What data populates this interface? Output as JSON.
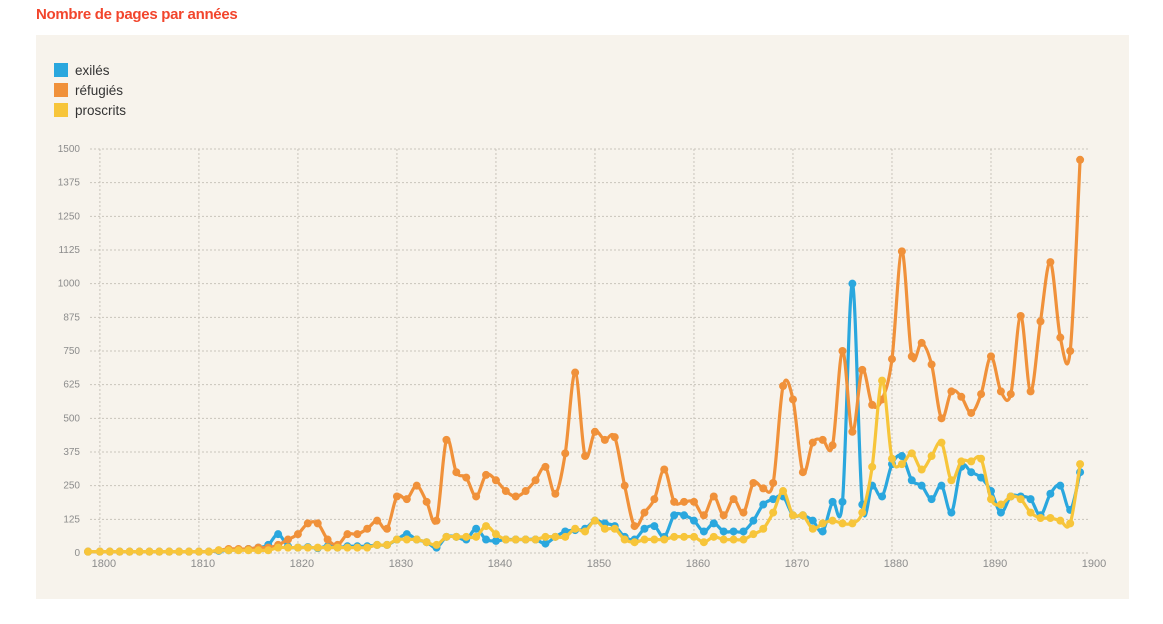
{
  "chart_title": "Nombre de pages par années",
  "chart_data": {
    "type": "line",
    "title": "Nombre de pages par années",
    "xlabel": "",
    "ylabel": "",
    "xlim": [
      1799,
      1900
    ],
    "ylim": [
      0,
      1500
    ],
    "x_ticks": [
      1800,
      1810,
      1820,
      1830,
      1840,
      1850,
      1860,
      1870,
      1880,
      1890,
      1900
    ],
    "y_ticks": [
      0,
      125,
      250,
      375,
      500,
      625,
      750,
      875,
      1000,
      1125,
      1250,
      1375,
      1500
    ],
    "grid": true,
    "legend_position": "top-left",
    "x": [
      1798.8,
      1800,
      1801,
      1802,
      1803,
      1804,
      1805,
      1806,
      1807,
      1808,
      1809,
      1810,
      1811,
      1812,
      1813,
      1814,
      1815,
      1816,
      1817,
      1818,
      1819,
      1820,
      1821,
      1822,
      1823,
      1824,
      1825,
      1826,
      1827,
      1828,
      1829,
      1830,
      1831,
      1832,
      1833,
      1834,
      1835,
      1836,
      1837,
      1838,
      1839,
      1840,
      1841,
      1842,
      1843,
      1844,
      1845,
      1846,
      1847,
      1848,
      1849,
      1850,
      1851,
      1852,
      1853,
      1854,
      1855,
      1856,
      1857,
      1858,
      1859,
      1860,
      1861,
      1862,
      1863,
      1864,
      1865,
      1866,
      1867,
      1868,
      1869,
      1870,
      1871,
      1872,
      1873,
      1874,
      1875,
      1876,
      1877,
      1878,
      1879,
      1880,
      1881,
      1882,
      1883,
      1884,
      1885,
      1886,
      1887,
      1888,
      1889,
      1890,
      1891,
      1892,
      1893,
      1894,
      1895,
      1896,
      1897,
      1898,
      1899
    ],
    "series": [
      {
        "name": "exilés",
        "color": "#2aa7de",
        "values": [
          5,
          5,
          5,
          5,
          5,
          5,
          5,
          5,
          5,
          5,
          5,
          5,
          5,
          8,
          10,
          12,
          15,
          20,
          30,
          70,
          25,
          20,
          22,
          18,
          25,
          20,
          25,
          25,
          25,
          30,
          30,
          50,
          70,
          50,
          40,
          20,
          60,
          60,
          50,
          90,
          50,
          45,
          50,
          50,
          50,
          50,
          35,
          60,
          80,
          85,
          90,
          120,
          110,
          100,
          60,
          50,
          90,
          100,
          60,
          140,
          140,
          120,
          80,
          110,
          80,
          80,
          80,
          120,
          180,
          200,
          210,
          140,
          140,
          120,
          80,
          190,
          190,
          1000,
          180,
          250,
          210,
          330,
          360,
          270,
          250,
          200,
          250,
          150,
          320,
          300,
          280,
          230,
          150,
          210,
          210,
          200,
          140,
          220,
          250,
          160,
          300
        ]
      },
      {
        "name": "réfugiés",
        "color": "#f0913a",
        "values": [
          5,
          5,
          5,
          5,
          5,
          5,
          5,
          5,
          5,
          5,
          5,
          5,
          5,
          10,
          15,
          15,
          15,
          20,
          20,
          30,
          50,
          70,
          110,
          110,
          50,
          30,
          70,
          70,
          90,
          120,
          90,
          210,
          200,
          250,
          190,
          120,
          420,
          300,
          280,
          210,
          290,
          270,
          230,
          210,
          230,
          270,
          320,
          220,
          370,
          670,
          360,
          450,
          420,
          430,
          250,
          100,
          150,
          200,
          310,
          190,
          190,
          190,
          140,
          210,
          140,
          200,
          150,
          260,
          240,
          260,
          620,
          570,
          300,
          410,
          420,
          400,
          750,
          450,
          680,
          550,
          570,
          720,
          1120,
          730,
          780,
          700,
          500,
          600,
          580,
          520,
          590,
          730,
          600,
          590,
          880,
          600,
          860,
          1080,
          800,
          750,
          1460
        ]
      },
      {
        "name": "proscrits",
        "color": "#f7c53a",
        "values": [
          5,
          5,
          5,
          5,
          5,
          5,
          5,
          5,
          5,
          5,
          5,
          5,
          5,
          10,
          10,
          10,
          10,
          10,
          10,
          20,
          20,
          20,
          20,
          20,
          20,
          20,
          20,
          20,
          20,
          30,
          30,
          50,
          50,
          50,
          40,
          30,
          60,
          60,
          60,
          60,
          100,
          70,
          50,
          50,
          50,
          50,
          60,
          60,
          60,
          90,
          80,
          120,
          90,
          90,
          50,
          40,
          50,
          50,
          50,
          60,
          60,
          60,
          40,
          60,
          50,
          50,
          50,
          70,
          90,
          150,
          230,
          140,
          140,
          90,
          110,
          120,
          110,
          110,
          150,
          320,
          640,
          350,
          330,
          370,
          310,
          360,
          410,
          270,
          340,
          340,
          350,
          200,
          180,
          210,
          200,
          150,
          130,
          130,
          120,
          110,
          330
        ]
      }
    ]
  },
  "legend": [
    {
      "label": "exilés",
      "color": "#2aa7de"
    },
    {
      "label": "réfugiés",
      "color": "#f0913a"
    },
    {
      "label": "proscrits",
      "color": "#f7c53a"
    }
  ]
}
